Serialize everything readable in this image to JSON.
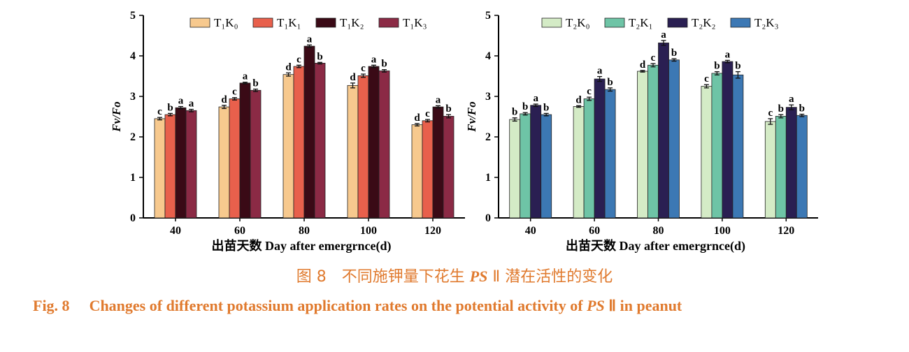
{
  "chart_data": [
    {
      "type": "bar",
      "ylabel": "Fv/Fo",
      "xlabel": "出苗天数 Day after emergrnce(d)",
      "ylim": [
        0,
        5
      ],
      "yticks": [
        0,
        1,
        2,
        3,
        4,
        5
      ],
      "categories": [
        "40",
        "60",
        "80",
        "100",
        "120"
      ],
      "legend": "top",
      "series": [
        {
          "name": "T₁K₀",
          "color": "#f7c98e",
          "values": [
            2.45,
            2.74,
            3.54,
            3.27,
            2.3
          ],
          "errors": [
            0.03,
            0.04,
            0.04,
            0.06,
            0.03
          ],
          "labels": [
            "c",
            "d",
            "d",
            "d",
            "d"
          ]
        },
        {
          "name": "T₁K₁",
          "color": "#e8604c",
          "values": [
            2.55,
            2.94,
            3.74,
            3.51,
            2.4
          ],
          "errors": [
            0.03,
            0.03,
            0.03,
            0.04,
            0.03
          ],
          "labels": [
            "b",
            "c",
            "c",
            "c",
            "c"
          ]
        },
        {
          "name": "T₁K₂",
          "color": "#3a0a16",
          "values": [
            2.72,
            3.33,
            4.24,
            3.74,
            2.74
          ],
          "errors": [
            0.03,
            0.02,
            0.03,
            0.03,
            0.03
          ],
          "labels": [
            "a",
            "a",
            "a",
            "a",
            "a"
          ]
        },
        {
          "name": "T₁K₃",
          "color": "#8b2a45",
          "values": [
            2.65,
            3.15,
            3.82,
            3.63,
            2.51
          ],
          "errors": [
            0.03,
            0.03,
            0.02,
            0.03,
            0.04
          ],
          "labels": [
            "a",
            "b",
            "b",
            "b",
            "b"
          ]
        }
      ]
    },
    {
      "type": "bar",
      "ylabel": "Fv/Fo",
      "xlabel": "出苗天数 Day after emergrnce(d)",
      "ylim": [
        0,
        5
      ],
      "yticks": [
        0,
        1,
        2,
        3,
        4,
        5
      ],
      "categories": [
        "40",
        "60",
        "80",
        "100",
        "120"
      ],
      "legend": "top",
      "series": [
        {
          "name": "T₂K₀",
          "color": "#d4ebc6",
          "values": [
            2.43,
            2.75,
            3.62,
            3.25,
            2.38
          ],
          "errors": [
            0.04,
            0.02,
            0.02,
            0.04,
            0.07
          ],
          "labels": [
            "b",
            "d",
            "d",
            "c",
            "c"
          ]
        },
        {
          "name": "T₂K₁",
          "color": "#6ec4a6",
          "values": [
            2.57,
            2.94,
            3.77,
            3.57,
            2.51
          ],
          "errors": [
            0.03,
            0.04,
            0.04,
            0.04,
            0.04
          ],
          "labels": [
            "b",
            "c",
            "c",
            "b",
            "b"
          ]
        },
        {
          "name": "T₂K₂",
          "color": "#2a1f52",
          "values": [
            2.78,
            3.43,
            4.32,
            3.86,
            2.73
          ],
          "errors": [
            0.03,
            0.06,
            0.06,
            0.03,
            0.06
          ],
          "labels": [
            "a",
            "a",
            "a",
            "a",
            "a"
          ]
        },
        {
          "name": "T₂K₃",
          "color": "#3c78b4",
          "values": [
            2.55,
            3.17,
            3.9,
            3.53,
            2.53
          ],
          "errors": [
            0.03,
            0.04,
            0.03,
            0.08,
            0.03
          ],
          "labels": [
            "b",
            "b",
            "b",
            "b",
            "b"
          ]
        }
      ]
    }
  ],
  "caption": {
    "cn_prefix": "图 8　不同施钾量下花生 ",
    "cn_italic": "PS",
    "cn_suffix": " Ⅱ 潜在活性的变化",
    "en_label": "Fig. 8",
    "en_prefix": "Changes of different potassium application rates on the potential activity of ",
    "en_italic": "PS",
    "en_suffix": " Ⅱ in peanut"
  }
}
